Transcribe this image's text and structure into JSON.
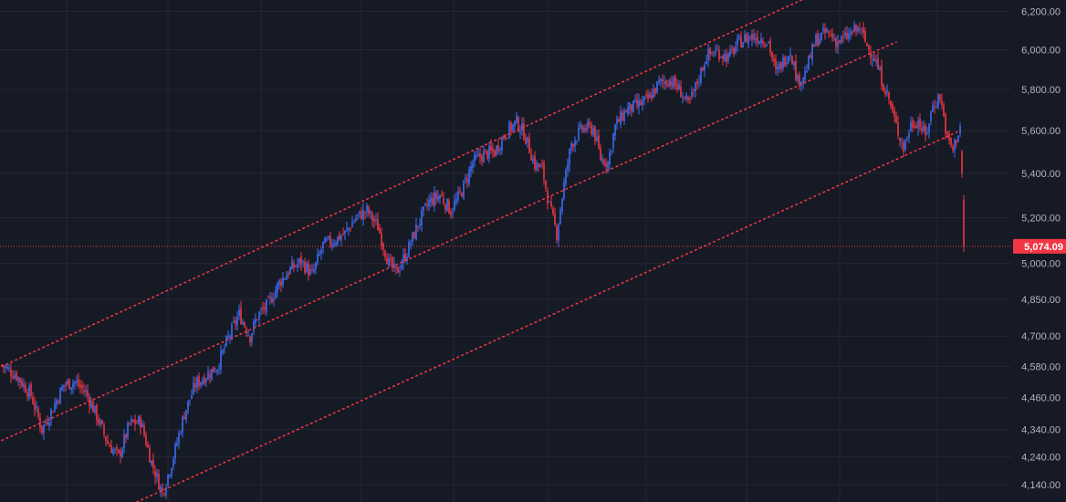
{
  "chart_data": {
    "type": "candlestick",
    "title": "",
    "xlabel": "",
    "ylabel": "",
    "scale": "log",
    "ylim": [
      4080,
      6260
    ],
    "grid": true,
    "colors": {
      "background": "#161a25",
      "grid": "#242733",
      "up": "#3d6ef5",
      "down": "#f23645",
      "channel": "#f23645",
      "axis_text": "#b2b5be"
    },
    "y_ticks": [
      {
        "value": 6200,
        "label": "6,200.00"
      },
      {
        "value": 6000,
        "label": "6,000.00"
      },
      {
        "value": 5800,
        "label": "5,800.00"
      },
      {
        "value": 5600,
        "label": "5,600.00"
      },
      {
        "value": 5400,
        "label": "5,400.00"
      },
      {
        "value": 5200,
        "label": "5,200.00"
      },
      {
        "value": 5000,
        "label": "5,000.00"
      },
      {
        "value": 4850,
        "label": "4,850.00"
      },
      {
        "value": 4700,
        "label": "4,700.00"
      },
      {
        "value": 4580,
        "label": "4,580.00"
      },
      {
        "value": 4460,
        "label": "4,460.00"
      },
      {
        "value": 4340,
        "label": "4,340.00"
      },
      {
        "value": 4240,
        "label": "4,240.00"
      },
      {
        "value": 4140,
        "label": "4,140.00"
      }
    ],
    "last_price": {
      "value": 5074.09,
      "label": "5,074.09"
    },
    "anchors": [
      [
        0,
        4585
      ],
      [
        8,
        4545
      ],
      [
        16,
        4470
      ],
      [
        22,
        4340
      ],
      [
        28,
        4420
      ],
      [
        34,
        4510
      ],
      [
        40,
        4520
      ],
      [
        46,
        4480
      ],
      [
        52,
        4390
      ],
      [
        58,
        4290
      ],
      [
        64,
        4240
      ],
      [
        70,
        4360
      ],
      [
        76,
        4370
      ],
      [
        82,
        4220
      ],
      [
        88,
        4110
      ],
      [
        94,
        4240
      ],
      [
        100,
        4400
      ],
      [
        106,
        4510
      ],
      [
        112,
        4545
      ],
      [
        118,
        4580
      ],
      [
        124,
        4690
      ],
      [
        130,
        4790
      ],
      [
        136,
        4700
      ],
      [
        140,
        4780
      ],
      [
        146,
        4830
      ],
      [
        152,
        4920
      ],
      [
        158,
        4975
      ],
      [
        164,
        5010
      ],
      [
        170,
        4950
      ],
      [
        176,
        5080
      ],
      [
        182,
        5100
      ],
      [
        188,
        5130
      ],
      [
        194,
        5200
      ],
      [
        200,
        5230
      ],
      [
        206,
        5160
      ],
      [
        212,
        5000
      ],
      [
        216,
        4960
      ],
      [
        222,
        5050
      ],
      [
        228,
        5170
      ],
      [
        234,
        5270
      ],
      [
        240,
        5300
      ],
      [
        246,
        5230
      ],
      [
        252,
        5320
      ],
      [
        258,
        5450
      ],
      [
        264,
        5490
      ],
      [
        270,
        5500
      ],
      [
        276,
        5590
      ],
      [
        282,
        5640
      ],
      [
        286,
        5590
      ],
      [
        292,
        5440
      ],
      [
        296,
        5420
      ],
      [
        300,
        5250
      ],
      [
        304,
        5130
      ],
      [
        308,
        5350
      ],
      [
        312,
        5540
      ],
      [
        318,
        5610
      ],
      [
        324,
        5610
      ],
      [
        328,
        5470
      ],
      [
        332,
        5450
      ],
      [
        336,
        5620
      ],
      [
        342,
        5700
      ],
      [
        348,
        5720
      ],
      [
        354,
        5750
      ],
      [
        360,
        5830
      ],
      [
        366,
        5850
      ],
      [
        372,
        5790
      ],
      [
        376,
        5720
      ],
      [
        380,
        5810
      ],
      [
        386,
        5970
      ],
      [
        392,
        5990
      ],
      [
        398,
        5960
      ],
      [
        404,
        6040
      ],
      [
        410,
        6070
      ],
      [
        416,
        6060
      ],
      [
        420,
        6040
      ],
      [
        424,
        5880
      ],
      [
        428,
        5940
      ],
      [
        432,
        6000
      ],
      [
        436,
        5840
      ],
      [
        440,
        5880
      ],
      [
        446,
        6050
      ],
      [
        452,
        6090
      ],
      [
        458,
        6040
      ],
      [
        462,
        6060
      ],
      [
        466,
        6090
      ],
      [
        470,
        6110
      ],
      [
        474,
        6020
      ],
      [
        478,
        5960
      ],
      [
        482,
        5850
      ],
      [
        486,
        5750
      ],
      [
        490,
        5620
      ],
      [
        494,
        5520
      ],
      [
        498,
        5630
      ],
      [
        502,
        5650
      ],
      [
        506,
        5570
      ],
      [
        510,
        5720
      ],
      [
        514,
        5770
      ],
      [
        518,
        5560
      ],
      [
        521,
        5510
      ],
      [
        525,
        5620
      ]
    ],
    "tail": [
      {
        "o": 5500,
        "h": 5510,
        "l": 5380,
        "c": 5400
      },
      {
        "o": 5280,
        "h": 5300,
        "l": 5050,
        "c": 5074.09
      }
    ],
    "channel_lines": [
      {
        "from": [
          0,
          4580
        ],
        "to": [
          480,
          6450
        ]
      },
      {
        "from": [
          0,
          4300
        ],
        "to": [
          490,
          6040
        ]
      },
      {
        "from": [
          74,
          4080
        ],
        "to": [
          525,
          5600
        ]
      }
    ]
  }
}
